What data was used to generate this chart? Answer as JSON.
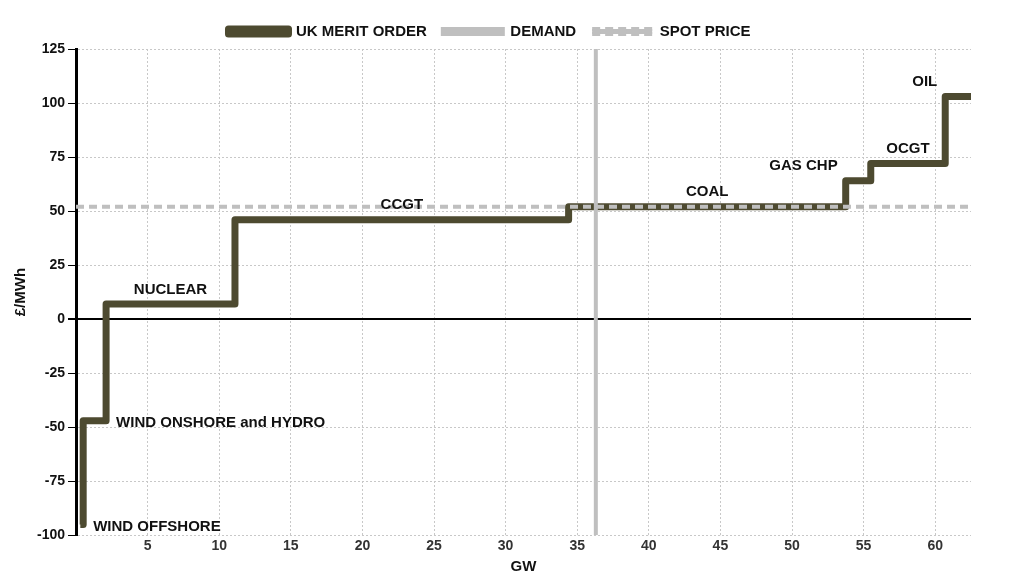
{
  "chart_data": {
    "type": "step",
    "xlabel": "GW",
    "ylabel": "£/MWh",
    "x": [
      0.3,
      0.5,
      2.1,
      11.1,
      34.4,
      53.75,
      55.5,
      60.7,
      62.5
    ],
    "series": [
      {
        "name": "UK MERIT ORDER",
        "color": "#4d4a30",
        "values": [
          -95,
          -47,
          7,
          46,
          52,
          64,
          72,
          103,
          103
        ]
      }
    ],
    "xlim": [
      0,
      62.5
    ],
    "xticks": [
      5,
      10,
      15,
      20,
      25,
      30,
      35,
      40,
      45,
      50,
      55,
      60
    ],
    "ylim": [
      -100,
      125
    ],
    "yticks": [
      -100,
      -75,
      -50,
      -25,
      0,
      25,
      50,
      75,
      100,
      125
    ],
    "ref_lines": [
      {
        "axis": "x",
        "value": 36.3,
        "label": "DEMAND",
        "color": "#bfbfbf",
        "line_style": "solid"
      },
      {
        "axis": "y",
        "value": 52,
        "label": "SPOT PRICE",
        "color": "#bfbfbf",
        "line_style": "dashed"
      },
      {
        "axis": "y",
        "value": 0,
        "color": "#000000",
        "line_style": "solid"
      }
    ],
    "annotations": [
      "WIND OFFSHORE",
      "WIND ONSHORE and HYDRO",
      "NUCLEAR",
      "CCGT",
      "COAL",
      "GAS CHP",
      "OCGT",
      "OIL"
    ],
    "grid": true,
    "legend": "top",
    "marker": "none",
    "line_style": "solid"
  }
}
